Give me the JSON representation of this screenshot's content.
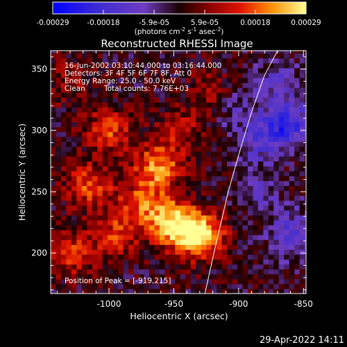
{
  "colorbar": {
    "tick_labels": [
      "-0.00029",
      "-0.00018",
      "-5.9e-05",
      "5.9e-05",
      "0.00018",
      "0.00029"
    ],
    "unit_main": "(photons cm",
    "unit_exp1": "-2",
    "unit_mid": " s",
    "unit_exp2": "-1",
    "unit_tail": " asec",
    "unit_exp3": "-2",
    "unit_close": ")"
  },
  "annotations": {
    "time_range": "16-Jun-2002 03:10:44.000 to 03:16:44.000",
    "detectors": "Detectors: 3F 4F 5F 6F 7F 8F, Att 0",
    "energy": "Energy Range: 25.0 - 50.0 keV",
    "method": "Clean",
    "counts": "Total counts: 7.76E+03",
    "peak": "Position of Peak = [-919,215]"
  },
  "footer": {
    "timestamp": "29-Apr-2022 14:11"
  },
  "chart_data": {
    "type": "heatmap",
    "title": "Reconstructed RHESSI Image",
    "xlabel": "Heliocentric X (arcsec)",
    "ylabel": "Heliocentric Y (arcsec)",
    "xlim": [
      -1045,
      -848
    ],
    "ylim": [
      167,
      365
    ],
    "x_ticks": [
      -1000,
      -950,
      -900,
      -850
    ],
    "y_ticks": [
      200,
      250,
      300,
      350
    ],
    "colorbar_range": [
      -0.00029,
      0.00029
    ],
    "peak_position": [
      -919,
      215
    ],
    "limb_curve": {
      "x": [
        -926,
        -918,
        -908,
        -900,
        -890,
        -880,
        -870
      ],
      "y": [
        167,
        205,
        250,
        280,
        315,
        345,
        365
      ]
    },
    "grid": false,
    "legend": "none",
    "sources": [
      {
        "x": -930,
        "y": 215,
        "amplitude": 0.00029
      },
      {
        "x": -952,
        "y": 225,
        "amplitude": 0.00024
      },
      {
        "x": -963,
        "y": 270,
        "amplitude": 0.00021
      },
      {
        "x": -1000,
        "y": 300,
        "amplitude": 0.00015
      },
      {
        "x": -1015,
        "y": 255,
        "amplitude": 0.00016
      },
      {
        "x": -1030,
        "y": 200,
        "amplitude": 0.00014
      },
      {
        "x": -995,
        "y": 215,
        "amplitude": 0.00013
      },
      {
        "x": -975,
        "y": 240,
        "amplitude": 0.00015
      },
      {
        "x": -920,
        "y": 330,
        "amplitude": 9e-05
      },
      {
        "x": -945,
        "y": 300,
        "amplitude": 0.0001
      },
      {
        "x": -1030,
        "y": 340,
        "amplitude": 7e-05
      },
      {
        "x": -885,
        "y": 290,
        "amplitude": -0.0001
      },
      {
        "x": -863,
        "y": 305,
        "amplitude": -0.0002
      },
      {
        "x": -858,
        "y": 215,
        "amplitude": -0.00015
      },
      {
        "x": -905,
        "y": 320,
        "amplitude": -8e-05
      },
      {
        "x": -870,
        "y": 340,
        "amplitude": -9e-05
      },
      {
        "x": -885,
        "y": 250,
        "amplitude": -8e-05
      }
    ]
  }
}
